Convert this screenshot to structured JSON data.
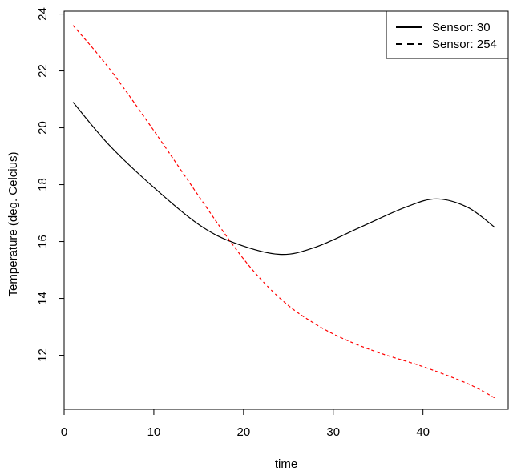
{
  "chart_data": {
    "type": "line",
    "title": "",
    "xlabel": "time",
    "ylabel": "Temperature (deg. Celcius)",
    "xlim": [
      0,
      49.5
    ],
    "ylim": [
      10.1,
      24.1
    ],
    "xticks": [
      0,
      10,
      20,
      30,
      40
    ],
    "yticks": [
      12,
      14,
      16,
      18,
      20,
      22,
      24
    ],
    "grid": false,
    "legend": {
      "position": "top-right"
    },
    "series": [
      {
        "name": "Sensor: 30",
        "color": "#000000",
        "line_style": "solid",
        "x": [
          1,
          5,
          10,
          15,
          19,
          24,
          28,
          33,
          38,
          41.5,
          45,
          48
        ],
        "y": [
          20.9,
          19.4,
          17.9,
          16.6,
          15.95,
          15.55,
          15.8,
          16.5,
          17.2,
          17.5,
          17.2,
          16.5
        ]
      },
      {
        "name": "Sensor: 254",
        "color": "#ff0000",
        "line_style": "dashed",
        "x": [
          1,
          5,
          10,
          15,
          19,
          22,
          25,
          28,
          31,
          35,
          40,
          45,
          48
        ],
        "y": [
          23.6,
          22.1,
          19.9,
          17.6,
          15.8,
          14.65,
          13.75,
          13.1,
          12.6,
          12.1,
          11.6,
          11.0,
          10.5
        ]
      }
    ]
  }
}
